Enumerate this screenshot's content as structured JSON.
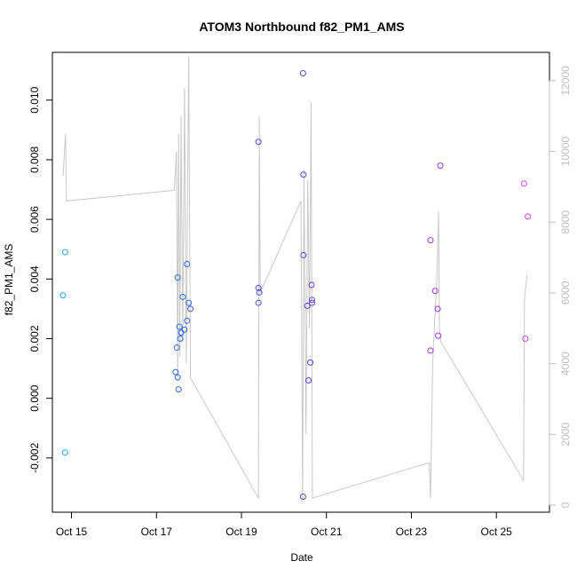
{
  "chart_data": {
    "type": "scatter",
    "title": "ATOM3 Northbound f82_PM1_AMS",
    "xlabel": "Date",
    "ylabel": "f82_PM1_AMS",
    "x_unit": "days (October)",
    "xlim": [
      14.55,
      26.25
    ],
    "ylim": [
      -0.00382,
      0.0116
    ],
    "x_ticks": [
      15,
      17,
      19,
      21,
      23,
      25
    ],
    "x_tick_labels": [
      "Oct 15",
      "Oct 17",
      "Oct 19",
      "Oct 21",
      "Oct 23",
      "Oct 25"
    ],
    "y_ticks": [
      -0.002,
      0.0,
      0.002,
      0.004,
      0.006,
      0.008,
      0.01
    ],
    "y_tick_labels": [
      "-0.002",
      "0.000",
      "0.002",
      "0.004",
      "0.006",
      "0.008",
      "0.010"
    ],
    "y2_ticks": [
      0,
      2000,
      4000,
      6000,
      8000,
      10000,
      12000
    ],
    "y2_tick_labels": [
      "0",
      "2000",
      "4000",
      "6000",
      "8000",
      "10000",
      "12000"
    ],
    "y2lim": [
      -200,
      12800
    ],
    "grid": false,
    "legend": "none",
    "colors": {
      "secondary_line": "#c8c8c8",
      "point_gradient": [
        "#1ea8e8",
        "#3355e0",
        "#7b2be0",
        "#e040f0"
      ]
    },
    "points": [
      {
        "x": 14.8,
        "y": 0.00345
      },
      {
        "x": 14.85,
        "y": 0.0049
      },
      {
        "x": 14.85,
        "y": -0.00182
      },
      {
        "x": 17.45,
        "y": 0.00088
      },
      {
        "x": 17.48,
        "y": 0.0017
      },
      {
        "x": 17.5,
        "y": 0.0007
      },
      {
        "x": 17.5,
        "y": 0.00405
      },
      {
        "x": 17.52,
        "y": 0.0003
      },
      {
        "x": 17.54,
        "y": 0.0024
      },
      {
        "x": 17.56,
        "y": 0.002
      },
      {
        "x": 17.58,
        "y": 0.0022
      },
      {
        "x": 17.62,
        "y": 0.0034
      },
      {
        "x": 17.66,
        "y": 0.0023
      },
      {
        "x": 17.72,
        "y": 0.0045
      },
      {
        "x": 17.72,
        "y": 0.0026
      },
      {
        "x": 17.76,
        "y": 0.0032
      },
      {
        "x": 17.8,
        "y": 0.003
      },
      {
        "x": 19.4,
        "y": 0.0086
      },
      {
        "x": 19.4,
        "y": 0.0037
      },
      {
        "x": 19.42,
        "y": 0.00355
      },
      {
        "x": 19.4,
        "y": 0.0032
      },
      {
        "x": 20.45,
        "y": 0.0109
      },
      {
        "x": 20.46,
        "y": 0.0075
      },
      {
        "x": 20.46,
        "y": 0.0048
      },
      {
        "x": 20.45,
        "y": -0.0033
      },
      {
        "x": 20.55,
        "y": 0.0031
      },
      {
        "x": 20.58,
        "y": 0.0006
      },
      {
        "x": 20.62,
        "y": 0.0012
      },
      {
        "x": 20.65,
        "y": 0.0038
      },
      {
        "x": 20.66,
        "y": 0.0033
      },
      {
        "x": 20.66,
        "y": 0.0032
      },
      {
        "x": 23.45,
        "y": 0.0053
      },
      {
        "x": 23.45,
        "y": 0.0016
      },
      {
        "x": 23.56,
        "y": 0.0036
      },
      {
        "x": 23.62,
        "y": 0.003
      },
      {
        "x": 23.63,
        "y": 0.0021
      },
      {
        "x": 23.68,
        "y": 0.0078
      },
      {
        "x": 25.65,
        "y": 0.0072
      },
      {
        "x": 25.68,
        "y": 0.002
      },
      {
        "x": 25.74,
        "y": 0.0061
      }
    ],
    "secondary_series": [
      {
        "x": 14.8,
        "y2": 9300
      },
      {
        "x": 14.86,
        "y2": 10500
      },
      {
        "x": 14.88,
        "y2": 8600
      },
      {
        "x": 17.42,
        "y2": 8900
      },
      {
        "x": 17.47,
        "y2": 10000
      },
      {
        "x": 17.5,
        "y2": 3500
      },
      {
        "x": 17.52,
        "y2": 10500
      },
      {
        "x": 17.55,
        "y2": 4200
      },
      {
        "x": 17.58,
        "y2": 11000
      },
      {
        "x": 17.62,
        "y2": 4600
      },
      {
        "x": 17.66,
        "y2": 11800
      },
      {
        "x": 17.7,
        "y2": 4000
      },
      {
        "x": 17.76,
        "y2": 12700
      },
      {
        "x": 17.8,
        "y2": 3600
      },
      {
        "x": 19.4,
        "y2": 200
      },
      {
        "x": 19.42,
        "y2": 11000
      },
      {
        "x": 19.44,
        "y2": 6000
      },
      {
        "x": 20.4,
        "y2": 8600
      },
      {
        "x": 20.44,
        "y2": 100
      },
      {
        "x": 20.47,
        "y2": 9500
      },
      {
        "x": 20.52,
        "y2": 2000
      },
      {
        "x": 20.56,
        "y2": 9200
      },
      {
        "x": 20.6,
        "y2": 5000
      },
      {
        "x": 20.64,
        "y2": 11400
      },
      {
        "x": 20.67,
        "y2": 200
      },
      {
        "x": 23.42,
        "y2": 1200
      },
      {
        "x": 23.45,
        "y2": 200
      },
      {
        "x": 23.5,
        "y2": 4000
      },
      {
        "x": 23.6,
        "y2": 6500
      },
      {
        "x": 23.64,
        "y2": 8300
      },
      {
        "x": 23.66,
        "y2": 5000
      },
      {
        "x": 23.7,
        "y2": 4600
      },
      {
        "x": 25.64,
        "y2": 700
      },
      {
        "x": 25.66,
        "y2": 5800
      },
      {
        "x": 25.72,
        "y2": 6500
      }
    ]
  }
}
